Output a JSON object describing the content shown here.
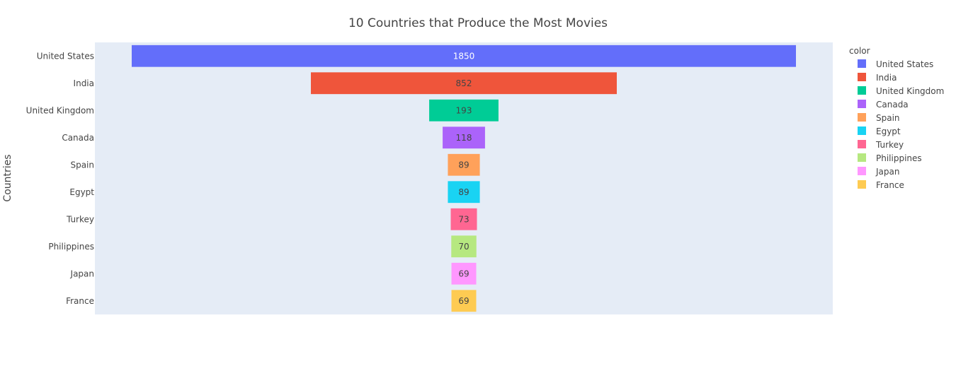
{
  "chart_data": {
    "type": "funnel",
    "title": "10 Countries that Produce the Most Movies",
    "ylabel": "Countries",
    "legend_title": "color",
    "legend_position": "right",
    "categories": [
      "United States",
      "India",
      "United Kingdom",
      "Canada",
      "Spain",
      "Egypt",
      "Turkey",
      "Philippines",
      "Japan",
      "France"
    ],
    "values": [
      1850,
      852,
      193,
      118,
      89,
      89,
      73,
      70,
      69,
      69
    ],
    "colors": [
      "#636efa",
      "#ef553b",
      "#00cc96",
      "#ab63fa",
      "#ffa15a",
      "#19d3f3",
      "#ff6692",
      "#b6e880",
      "#ff97ff",
      "#fecb52"
    ],
    "label_colors": [
      "#ffffff",
      "#444444",
      "#444444",
      "#444444",
      "#444444",
      "#444444",
      "#444444",
      "#444444",
      "#444444",
      "#444444"
    ]
  }
}
